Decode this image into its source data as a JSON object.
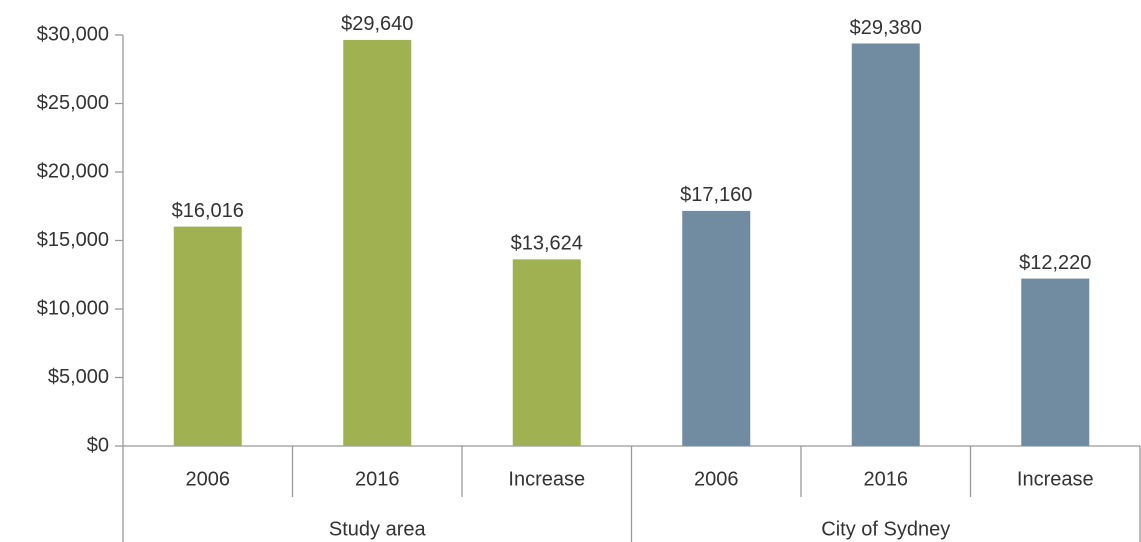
{
  "chart_data": {
    "type": "bar",
    "groups": [
      {
        "name": "Study area",
        "color": "#a0b152",
        "categories": [
          "2006",
          "2016",
          "Increase"
        ],
        "values": [
          16016,
          29640,
          13624
        ],
        "value_labels": [
          "$16,016",
          "$29,640",
          "$13,624"
        ]
      },
      {
        "name": "City of Sydney",
        "color": "#718ba0",
        "categories": [
          "2006",
          "2016",
          "Increase"
        ],
        "values": [
          17160,
          29380,
          12220
        ],
        "value_labels": [
          "$17,160",
          "$29,380",
          "$12,220"
        ]
      }
    ],
    "ylim": [
      0,
      30000
    ],
    "yticks": [
      {
        "value": 0,
        "label": "$0"
      },
      {
        "value": 5000,
        "label": "$5,000"
      },
      {
        "value": 10000,
        "label": "$10,000"
      },
      {
        "value": 15000,
        "label": "$15,000"
      },
      {
        "value": 20000,
        "label": "$20,000"
      },
      {
        "value": 25000,
        "label": "$25,000"
      },
      {
        "value": 30000,
        "label": "$30,000"
      }
    ]
  }
}
